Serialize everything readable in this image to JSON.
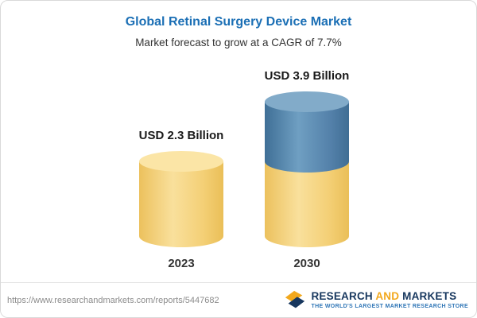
{
  "header": {
    "title": "Global Retinal Surgery Device Market",
    "subtitle": "Market forecast to grow at a CAGR of 7.7%"
  },
  "chart_data": {
    "type": "bar",
    "categories": [
      "2023",
      "2030"
    ],
    "values": [
      2.3,
      3.9
    ],
    "value_labels": [
      "USD 2.3 Billion",
      "USD 3.9 Billion"
    ],
    "title": "Global Retinal Surgery Device Market",
    "subtitle": "Market forecast to grow at a CAGR of 7.7%",
    "unit": "USD Billion",
    "cagr": "7.7%",
    "legend_position": "none",
    "grid": false,
    "colors": {
      "base_segment": "#f4d077",
      "growth_segment": "#527fa8"
    }
  },
  "footer": {
    "url": "https://www.researchandmarkets.com/reports/5447682",
    "logo": {
      "word1": "RESEARCH",
      "word2": "AND",
      "word3": "MARKETS",
      "tagline": "THE WORLD'S LARGEST MARKET RESEARCH STORE"
    }
  }
}
